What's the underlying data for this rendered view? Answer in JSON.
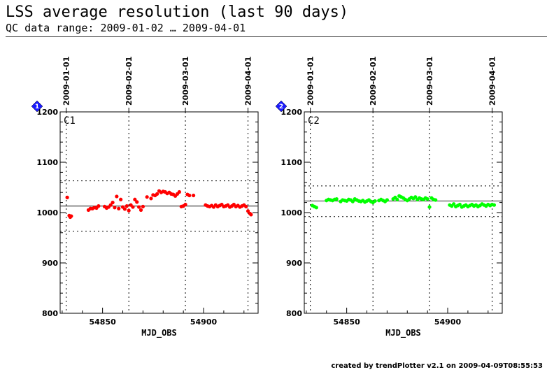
{
  "header": {
    "title": "LSS average resolution (last 90 days)",
    "subtitle": "QC data range: 2009-01-02 … 2009-04-01"
  },
  "footer": "created by trendPlotter v2.1 on 2009-04-09T08:55:53",
  "chart_data": [
    {
      "type": "scatter",
      "panel_label": "C1",
      "badge": "1",
      "badge_color": "#1a1aff",
      "point_color": "#ff0000",
      "xlabel": "MJD_OBS",
      "xlim": [
        54829,
        54927
      ],
      "ylim": [
        800,
        1200
      ],
      "x_ticks": [
        54850,
        54900
      ],
      "y_ticks": [
        800,
        900,
        1000,
        1100,
        1200
      ],
      "date_ticks": [
        {
          "mjd": 54832,
          "label": "2009-01-01"
        },
        {
          "mjd": 54863,
          "label": "2009-02-01"
        },
        {
          "mjd": 54891,
          "label": "2009-03-01"
        },
        {
          "mjd": 54922,
          "label": "2009-04-01"
        }
      ],
      "mean": 1013,
      "upper_limit": 1063,
      "lower_limit": 963,
      "points": [
        [
          54832.5,
          1030
        ],
        [
          54833.5,
          994
        ],
        [
          54834,
          991
        ],
        [
          54834.5,
          993
        ],
        [
          54843,
          1005
        ],
        [
          54844,
          1008
        ],
        [
          54845,
          1008
        ],
        [
          54846,
          1010
        ],
        [
          54847,
          1009
        ],
        [
          54848,
          1013
        ],
        [
          54851,
          1012
        ],
        [
          54852,
          1009
        ],
        [
          54853,
          1011
        ],
        [
          54854,
          1015
        ],
        [
          54855,
          1020
        ],
        [
          54856,
          1010
        ],
        [
          54857,
          1032
        ],
        [
          54858,
          1008
        ],
        [
          54859,
          1026
        ],
        [
          54860,
          1011
        ],
        [
          54861,
          1007
        ],
        [
          54862,
          1013
        ],
        [
          54863,
          1004
        ],
        [
          54864,
          1015
        ],
        [
          54865,
          1011
        ],
        [
          54866,
          1026
        ],
        [
          54867,
          1021
        ],
        [
          54868,
          1011
        ],
        [
          54869,
          1005
        ],
        [
          54870,
          1012
        ],
        [
          54872,
          1031
        ],
        [
          54874,
          1028
        ],
        [
          54875,
          1035
        ],
        [
          54876,
          1034
        ],
        [
          54877,
          1037
        ],
        [
          54878,
          1043
        ],
        [
          54879,
          1040
        ],
        [
          54880,
          1042
        ],
        [
          54881,
          1041
        ],
        [
          54882,
          1038
        ],
        [
          54883,
          1040
        ],
        [
          54884,
          1037
        ],
        [
          54885,
          1036
        ],
        [
          54886,
          1033
        ],
        [
          54887,
          1037
        ],
        [
          54888,
          1041
        ],
        [
          54889,
          1012
        ],
        [
          54890,
          1013
        ],
        [
          54891,
          1016
        ],
        [
          54892,
          1036
        ],
        [
          54893,
          1034
        ],
        [
          54895,
          1034
        ],
        [
          54901,
          1015
        ],
        [
          54902,
          1013
        ],
        [
          54903,
          1012
        ],
        [
          54904,
          1014
        ],
        [
          54905,
          1011
        ],
        [
          54906,
          1015
        ],
        [
          54907,
          1012
        ],
        [
          54908,
          1014
        ],
        [
          54909,
          1016
        ],
        [
          54910,
          1012
        ],
        [
          54911,
          1013
        ],
        [
          54912,
          1015
        ],
        [
          54913,
          1011
        ],
        [
          54914,
          1013
        ],
        [
          54915,
          1016
        ],
        [
          54916,
          1012
        ],
        [
          54917,
          1014
        ],
        [
          54918,
          1011
        ],
        [
          54919,
          1013
        ],
        [
          54920,
          1015
        ],
        [
          54921,
          1012
        ],
        [
          54922,
          1003
        ],
        [
          54923,
          998
        ],
        [
          54923.5,
          996
        ]
      ]
    },
    {
      "type": "scatter",
      "panel_label": "C2",
      "badge": "2",
      "badge_color": "#1a1aff",
      "point_color": "#00ff00",
      "xlabel": "MJD_OBS",
      "xlim": [
        54829,
        54927
      ],
      "ylim": [
        800,
        1200
      ],
      "x_ticks": [
        54850,
        54900
      ],
      "y_ticks": [
        800,
        900,
        1000,
        1100,
        1200
      ],
      "date_ticks": [
        {
          "mjd": 54832,
          "label": "2009-01-01"
        },
        {
          "mjd": 54863,
          "label": "2009-02-01"
        },
        {
          "mjd": 54891,
          "label": "2009-03-01"
        },
        {
          "mjd": 54922,
          "label": "2009-04-01"
        }
      ],
      "mean": 1023,
      "upper_limit": 1053,
      "lower_limit": 992,
      "points": [
        [
          54833,
          1014
        ],
        [
          54834,
          1012
        ],
        [
          54835,
          1010
        ],
        [
          54840,
          1024
        ],
        [
          54841,
          1026
        ],
        [
          54842,
          1025
        ],
        [
          54843,
          1024
        ],
        [
          54844,
          1026
        ],
        [
          54845,
          1027
        ],
        [
          54847,
          1022
        ],
        [
          54848,
          1025
        ],
        [
          54849,
          1024
        ],
        [
          54850,
          1023
        ],
        [
          54851,
          1026
        ],
        [
          54852,
          1025
        ],
        [
          54853,
          1022
        ],
        [
          54854,
          1027
        ],
        [
          54855,
          1025
        ],
        [
          54856,
          1023
        ],
        [
          54857,
          1022
        ],
        [
          54858,
          1024
        ],
        [
          54859,
          1021
        ],
        [
          54860,
          1023
        ],
        [
          54861,
          1025
        ],
        [
          54862,
          1022
        ],
        [
          54863,
          1020
        ],
        [
          54864,
          1023
        ],
        [
          54866,
          1024
        ],
        [
          54867,
          1026
        ],
        [
          54868,
          1024
        ],
        [
          54869,
          1022
        ],
        [
          54870,
          1025
        ],
        [
          54873,
          1027
        ],
        [
          54874,
          1030
        ],
        [
          54875,
          1026
        ],
        [
          54876,
          1033
        ],
        [
          54877,
          1031
        ],
        [
          54878,
          1029
        ],
        [
          54879,
          1026
        ],
        [
          54880,
          1024
        ],
        [
          54881,
          1027
        ],
        [
          54882,
          1030
        ],
        [
          54883,
          1028
        ],
        [
          54884,
          1031
        ],
        [
          54885,
          1026
        ],
        [
          54886,
          1029
        ],
        [
          54887,
          1027
        ],
        [
          54888,
          1026
        ],
        [
          54889,
          1029
        ],
        [
          54890,
          1027
        ],
        [
          54891,
          1011
        ],
        [
          54892,
          1029
        ],
        [
          54893,
          1026
        ],
        [
          54894,
          1025
        ],
        [
          54901,
          1015
        ],
        [
          54902,
          1013
        ],
        [
          54903,
          1017
        ],
        [
          54904,
          1012
        ],
        [
          54905,
          1014
        ],
        [
          54906,
          1016
        ],
        [
          54907,
          1011
        ],
        [
          54908,
          1013
        ],
        [
          54909,
          1015
        ],
        [
          54910,
          1012
        ],
        [
          54911,
          1014
        ],
        [
          54912,
          1016
        ],
        [
          54913,
          1013
        ],
        [
          54914,
          1015
        ],
        [
          54915,
          1012
        ],
        [
          54916,
          1014
        ],
        [
          54917,
          1017
        ],
        [
          54918,
          1015
        ],
        [
          54919,
          1013
        ],
        [
          54920,
          1016
        ],
        [
          54921,
          1014
        ],
        [
          54922,
          1016
        ],
        [
          54923,
          1015
        ]
      ]
    }
  ]
}
